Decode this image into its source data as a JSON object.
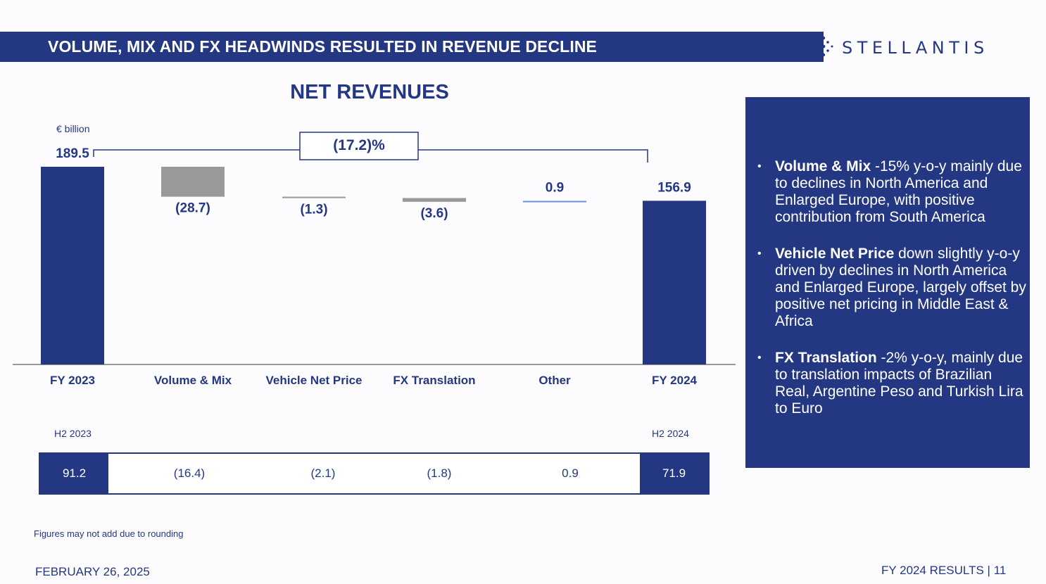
{
  "header": {
    "title": "VOLUME, MIX AND FX HEADWINDS RESULTED IN REVENUE DECLINE"
  },
  "logo": {
    "word": "STELLANTIS",
    "icon": "stellantis-logo-icon"
  },
  "chart_data": {
    "type": "bar",
    "subtype": "waterfall",
    "title": "NET REVENUES",
    "unit": "€ billion",
    "categories": [
      "FY 2023",
      "Volume & Mix",
      "Vehicle Net Price",
      "FX Translation",
      "Other",
      "FY 2024"
    ],
    "values": [
      189.5,
      -28.7,
      -1.3,
      -3.6,
      0.9,
      156.9
    ],
    "value_labels": [
      "189.5",
      "(28.7)",
      "(1.3)",
      "(3.6)",
      "0.9",
      "156.9"
    ],
    "kinds": [
      "total",
      "delta",
      "delta",
      "delta",
      "delta",
      "total"
    ],
    "change_label": "(17.2)%",
    "colors": {
      "total": "#243782",
      "negative": "#999999",
      "positive": "#6F8FE0"
    },
    "ylim": [
      0,
      195
    ]
  },
  "h2_table": {
    "start_caption": "H2 2023",
    "end_caption": "H2 2024",
    "values": [
      "91.2",
      "(16.4)",
      "(2.1)",
      "(1.8)",
      "0.9",
      "71.9"
    ]
  },
  "commentary": [
    {
      "bold": "Volume & Mix",
      "text": " -15% y-o-y mainly due to declines in North America and Enlarged Europe, with positive contribution from South America"
    },
    {
      "bold": "Vehicle Net Price",
      "text": " down slightly y-o-y driven by declines in North America and Enlarged Europe, largely offset by positive net pricing in Middle East & Africa"
    },
    {
      "bold": "FX Translation",
      "text": " -2% y-o-y, mainly due to translation impacts of Brazilian Real, Argentine Peso and Turkish Lira to Euro"
    }
  ],
  "footnote": "Figures may not add due to rounding",
  "footer": {
    "date": "FEBRUARY 26, 2025",
    "results": "FY 2024 RESULTS  |  11"
  }
}
